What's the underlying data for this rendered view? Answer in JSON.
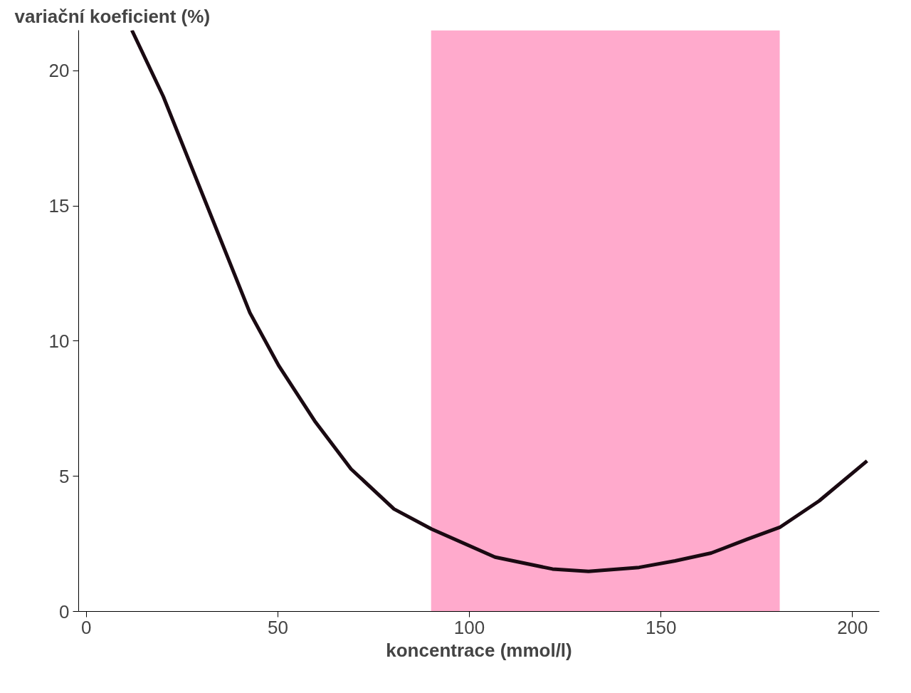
{
  "chart_data": {
    "type": "line",
    "ylabel": "variační koeficient (%)",
    "xlabel": "koncentrace (mmol/l)",
    "x": [
      11.9,
      20.1,
      31.4,
      42.7,
      50.2,
      59.6,
      69.1,
      80.3,
      90.1,
      106.7,
      121.7,
      131.1,
      144.3,
      153.7,
      163.1,
      172.5,
      181,
      191.3,
      203.8
    ],
    "series": [
      {
        "color": "#1a0a12",
        "values": [
          21.5,
          19.05,
          15.05,
          11.05,
          9.1,
          7.05,
          5.27,
          3.79,
          3.05,
          2.01,
          1.57,
          1.48,
          1.63,
          1.87,
          2.16,
          2.67,
          3.11,
          4.09,
          5.57
        ]
      }
    ],
    "xlim": [
      -2,
      207
    ],
    "ylim": [
      0,
      21.5
    ],
    "xticks": [
      0,
      50,
      100,
      150,
      200
    ],
    "yticks": [
      0,
      5,
      10,
      15,
      20
    ],
    "bands": [
      {
        "axis": "x",
        "from": 90,
        "to": 181,
        "color": "#ffaacc"
      }
    ],
    "grid": false,
    "marker": "none",
    "line_style": "solid"
  }
}
